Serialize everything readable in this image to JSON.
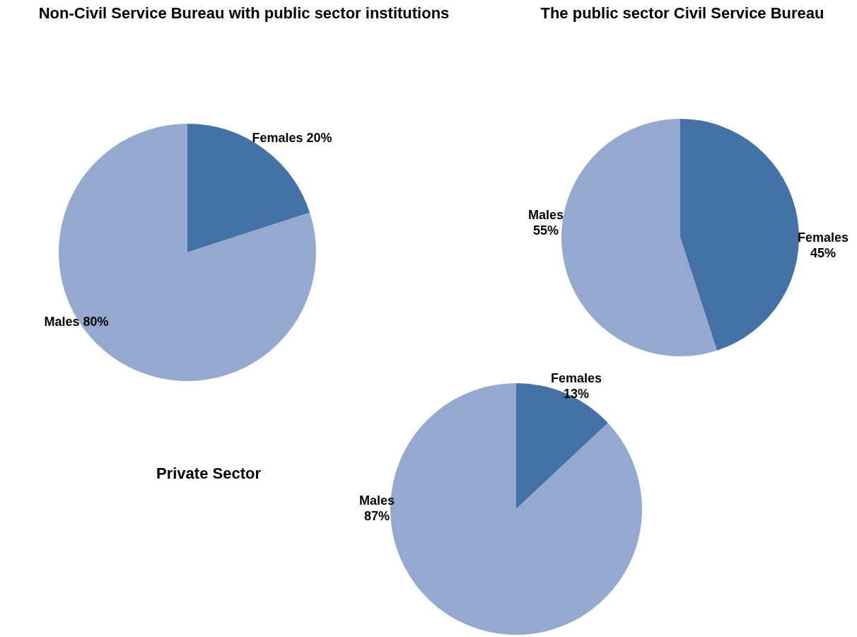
{
  "chart_data": [
    {
      "type": "pie",
      "title": "Non-Civil Service Bureau with public sector institutions",
      "categories": [
        "Females",
        "Males"
      ],
      "values": [
        20,
        80
      ],
      "colors": [
        "#4472a6",
        "#95a9d0"
      ],
      "value_labels": [
        "20%",
        "80%"
      ],
      "legend": false
    },
    {
      "type": "pie",
      "title": "The public sector Civil Service Bureau",
      "categories": [
        "Females",
        "Males"
      ],
      "values": [
        45,
        55
      ],
      "colors": [
        "#4472a6",
        "#95a9d0"
      ],
      "value_labels": [
        "45%",
        "55%"
      ],
      "legend": false
    },
    {
      "type": "pie",
      "title": "Private Sector",
      "categories": [
        "Females",
        "Males"
      ],
      "values": [
        13,
        87
      ],
      "colors": [
        "#4472a6",
        "#95a9d0"
      ],
      "value_labels": [
        "13%",
        "87%"
      ],
      "legend": false
    }
  ]
}
